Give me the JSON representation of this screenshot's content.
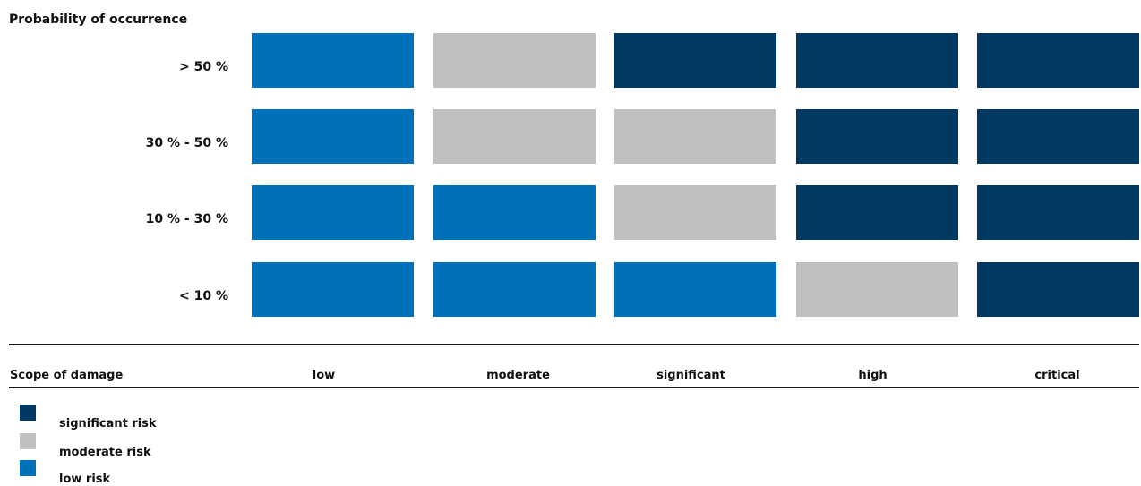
{
  "chart_data": {
    "type": "heatmap",
    "ylabel": "Probability of occurrence",
    "xlabel": "Scope of damage",
    "rows": [
      "> 50 %",
      "30 % - 50 %",
      "10 % - 30 %",
      "< 10 %"
    ],
    "columns": [
      "low",
      "moderate",
      "significant",
      "high",
      "critical"
    ],
    "cells": [
      [
        "low risk",
        "moderate risk",
        "significant risk",
        "significant risk",
        "significant risk"
      ],
      [
        "low risk",
        "moderate risk",
        "moderate risk",
        "significant risk",
        "significant risk"
      ],
      [
        "low risk",
        "low risk",
        "moderate risk",
        "significant risk",
        "significant risk"
      ],
      [
        "low risk",
        "low risk",
        "low risk",
        "moderate risk",
        "significant risk"
      ]
    ],
    "legend": [
      {
        "label": "significant risk",
        "color": "#003a63"
      },
      {
        "label": "moderate risk",
        "color": "#bfbfbf"
      },
      {
        "label": "low risk",
        "color": "#0070ba"
      }
    ],
    "legend_position": "bottom-left"
  }
}
